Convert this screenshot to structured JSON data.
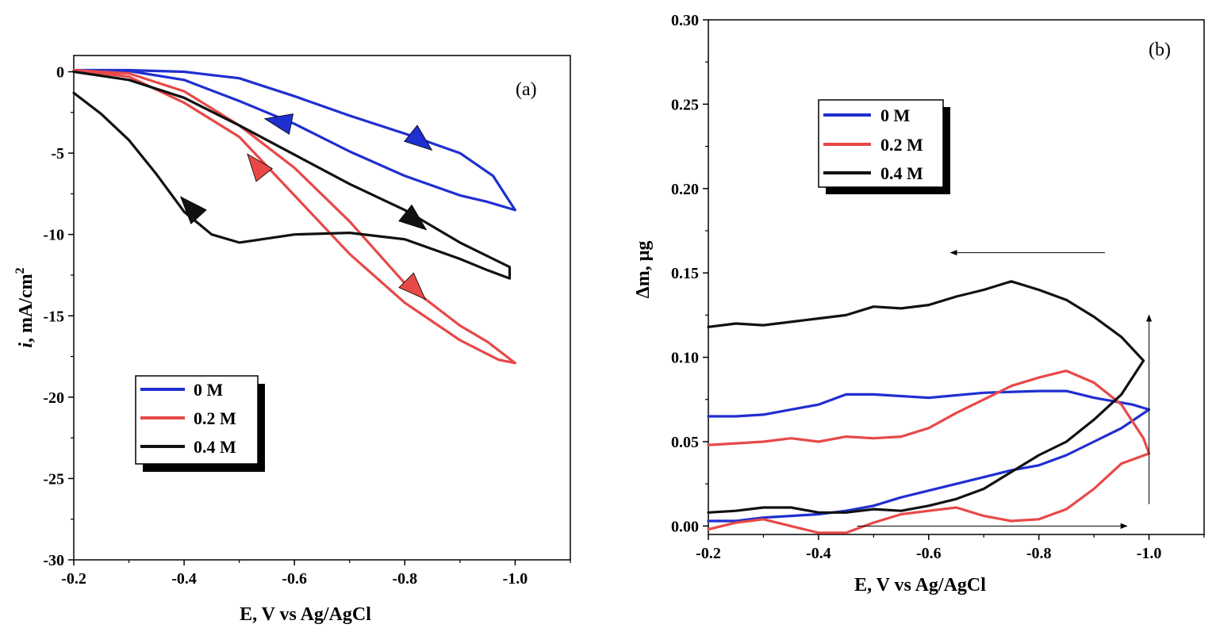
{
  "chart_data": [
    {
      "id": "a",
      "type": "line",
      "panel_label": "(a)",
      "xlabel": "E, V vs Ag/AgCl",
      "ylabel_italic": "i",
      "ylabel_rest": ", mA/cm",
      "ylabel_sup": "2",
      "xlim": [
        -0.2,
        -1.1
      ],
      "ylim": [
        -30,
        1
      ],
      "xticks": [
        -0.2,
        -0.4,
        -0.6,
        -0.8,
        -1.0
      ],
      "xtick_labels": [
        "-0.2",
        "-0.4",
        "-0.6",
        "-0.8",
        "-1.0"
      ],
      "yticks": [
        0,
        -5,
        -10,
        -15,
        -20,
        -25,
        -30
      ],
      "ytick_labels": [
        "0",
        "-5",
        "-10",
        "-15",
        "-20",
        "-25",
        "-30"
      ],
      "legend": [
        "0 M",
        "0.2 M",
        "0.4 M"
      ],
      "series": [
        {
          "name": "0 M",
          "color": "#1f2fd0",
          "x": [
            -0.2,
            -0.3,
            -0.4,
            -0.5,
            -0.6,
            -0.7,
            -0.8,
            -0.9,
            -0.96,
            -1.0,
            -0.95,
            -0.9,
            -0.8,
            -0.7,
            -0.6,
            -0.5,
            -0.4,
            -0.3,
            -0.2
          ],
          "y": [
            0.1,
            0.1,
            0.0,
            -0.4,
            -1.5,
            -2.7,
            -3.8,
            -5.0,
            -6.4,
            -8.5,
            -8.0,
            -7.6,
            -6.4,
            -4.9,
            -3.2,
            -1.8,
            -0.5,
            0.05,
            0.1
          ],
          "arrows": [
            {
              "x": -0.57,
              "y": -3.05,
              "dx": -1,
              "dy": -0.2
            },
            {
              "x": -0.83,
              "y": -4.3,
              "dx": 1,
              "dy": 0.8
            }
          ]
        },
        {
          "name": "0.2 M",
          "color": "#e84848",
          "x": [
            -0.2,
            -0.3,
            -0.4,
            -0.5,
            -0.6,
            -0.7,
            -0.8,
            -0.9,
            -0.97,
            -1.0,
            -0.95,
            -0.9,
            -0.8,
            -0.7,
            -0.6,
            -0.5,
            -0.4,
            -0.3,
            -0.2
          ],
          "y": [
            0.1,
            -0.3,
            -1.9,
            -4.0,
            -7.6,
            -11.2,
            -14.2,
            -16.5,
            -17.7,
            -17.9,
            -16.6,
            -15.6,
            -13.0,
            -9.2,
            -5.9,
            -3.3,
            -1.2,
            -0.1,
            0.1
          ],
          "arrows": [
            {
              "x": -0.53,
              "y": -5.7,
              "dx": -0.8,
              "dy": -1
            },
            {
              "x": -0.82,
              "y": -13.4,
              "dx": 1,
              "dy": 1
            }
          ]
        },
        {
          "name": "0.4 M",
          "color": "#111111",
          "x": [
            -0.2,
            -0.3,
            -0.4,
            -0.5,
            -0.6,
            -0.7,
            -0.8,
            -0.9,
            -0.99,
            -0.99,
            -0.95,
            -0.9,
            -0.8,
            -0.7,
            -0.6,
            -0.5,
            -0.45,
            -0.4,
            -0.35,
            -0.3,
            -0.25,
            -0.2
          ],
          "y": [
            0.0,
            -0.5,
            -1.6,
            -3.3,
            -5.1,
            -6.9,
            -8.5,
            -10.5,
            -12.0,
            -12.7,
            -12.2,
            -11.5,
            -10.3,
            -9.9,
            -10.0,
            -10.5,
            -10.0,
            -8.6,
            -6.3,
            -4.2,
            -2.6,
            -1.3
          ],
          "arrows": [
            {
              "x": -0.41,
              "y": -8.3,
              "dx": -0.9,
              "dy": -1
            },
            {
              "x": -0.82,
              "y": -9.2,
              "dx": 1,
              "dy": 0.8
            }
          ]
        }
      ]
    },
    {
      "id": "b",
      "type": "line",
      "panel_label": "(b)",
      "xlabel": "E, V vs Ag/AgCl",
      "ylabel": "Δm, μg",
      "xlim": [
        -0.2,
        -1.1
      ],
      "ylim": [
        -0.005,
        0.3
      ],
      "xticks": [
        -0.2,
        -0.4,
        -0.6,
        -0.8,
        -1.0
      ],
      "xtick_labels": [
        "-0.2",
        "-0.4",
        "-0.6",
        "-0.8",
        "-1.0"
      ],
      "yticks": [
        0.0,
        0.05,
        0.1,
        0.15,
        0.2,
        0.25,
        0.3
      ],
      "ytick_labels": [
        "0.00",
        "0.05",
        "0.10",
        "0.15",
        "0.20",
        "0.25",
        "0.30"
      ],
      "legend": [
        "0 M",
        "0.2 M",
        "0.4 M"
      ],
      "series": [
        {
          "name": "0 M",
          "color": "#1f2fd0",
          "x": [
            -0.2,
            -0.25,
            -0.3,
            -0.35,
            -0.4,
            -0.45,
            -0.5,
            -0.55,
            -0.6,
            -0.65,
            -0.7,
            -0.75,
            -0.8,
            -0.85,
            -0.9,
            -0.95,
            -1.0,
            -0.97,
            -0.9,
            -0.85,
            -0.8,
            -0.7,
            -0.6,
            -0.5,
            -0.45,
            -0.4,
            -0.3,
            -0.25,
            -0.2
          ],
          "x_note": "",
          "y": [
            0.003,
            0.003,
            0.005,
            0.006,
            0.007,
            0.009,
            0.012,
            0.017,
            0.021,
            0.025,
            0.029,
            0.033,
            0.036,
            0.042,
            0.05,
            0.058,
            0.069,
            0.072,
            0.076,
            0.08,
            0.08,
            0.079,
            0.076,
            0.078,
            0.078,
            0.072,
            0.066,
            0.065,
            0.065
          ]
        },
        {
          "name": "0.2 M",
          "color": "#e84848",
          "x": [
            -0.2,
            -0.25,
            -0.3,
            -0.35,
            -0.4,
            -0.45,
            -0.5,
            -0.55,
            -0.6,
            -0.65,
            -0.7,
            -0.75,
            -0.8,
            -0.85,
            -0.9,
            -0.95,
            -1.0,
            -0.99,
            -0.95,
            -0.9,
            -0.85,
            -0.8,
            -0.75,
            -0.7,
            -0.65,
            -0.6,
            -0.55,
            -0.5,
            -0.45,
            -0.4,
            -0.35,
            -0.3,
            -0.25,
            -0.2
          ],
          "y": [
            -0.002,
            0.002,
            0.004,
            0.0,
            -0.004,
            -0.004,
            0.002,
            0.007,
            0.009,
            0.011,
            0.006,
            0.003,
            0.004,
            0.01,
            0.022,
            0.037,
            0.043,
            0.052,
            0.072,
            0.085,
            0.092,
            0.088,
            0.083,
            0.075,
            0.067,
            0.058,
            0.053,
            0.052,
            0.053,
            0.05,
            0.052,
            0.05,
            0.049,
            0.048
          ]
        },
        {
          "name": "0.4 M",
          "color": "#111111",
          "x": [
            -0.2,
            -0.25,
            -0.3,
            -0.35,
            -0.4,
            -0.45,
            -0.5,
            -0.55,
            -0.6,
            -0.65,
            -0.7,
            -0.75,
            -0.8,
            -0.85,
            -0.9,
            -0.95,
            -0.99,
            -0.95,
            -0.9,
            -0.85,
            -0.8,
            -0.75,
            -0.7,
            -0.65,
            -0.6,
            -0.55,
            -0.5,
            -0.45,
            -0.4,
            -0.35,
            -0.3,
            -0.25,
            -0.2
          ],
          "y": [
            0.008,
            0.009,
            0.011,
            0.011,
            0.008,
            0.008,
            0.01,
            0.009,
            0.012,
            0.016,
            0.022,
            0.032,
            0.042,
            0.05,
            0.063,
            0.078,
            0.098,
            0.112,
            0.124,
            0.134,
            0.14,
            0.145,
            0.14,
            0.136,
            0.131,
            0.129,
            0.13,
            0.125,
            0.123,
            0.121,
            0.119,
            0.12,
            0.118
          ]
        }
      ],
      "direction_arrows": [
        {
          "from": [
            -0.47,
            0.0
          ],
          "to": [
            -0.96,
            0.0
          ]
        },
        {
          "from": [
            -1.0,
            0.013
          ],
          "to": [
            -1.0,
            0.125
          ]
        },
        {
          "from": [
            -0.92,
            0.162
          ],
          "to": [
            -0.64,
            0.162
          ]
        }
      ]
    }
  ]
}
